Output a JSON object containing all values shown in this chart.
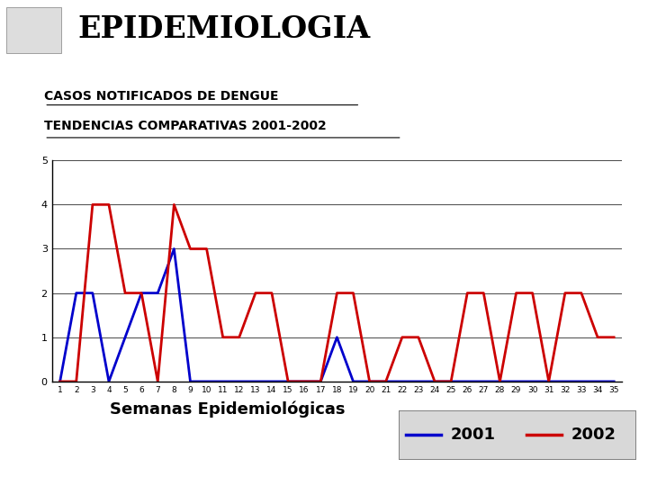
{
  "weeks": [
    1,
    2,
    3,
    4,
    5,
    6,
    7,
    8,
    9,
    10,
    11,
    12,
    13,
    14,
    15,
    16,
    17,
    18,
    19,
    20,
    21,
    22,
    23,
    24,
    25,
    26,
    27,
    28,
    29,
    30,
    31,
    32,
    33,
    34,
    35
  ],
  "y2001": [
    0,
    2,
    2,
    0,
    1,
    2,
    2,
    3,
    0,
    0,
    0,
    0,
    0,
    0,
    0,
    0,
    0,
    1,
    0,
    0,
    0,
    0,
    0,
    0,
    0,
    0,
    0,
    0,
    0,
    0,
    0,
    0,
    0,
    0,
    0
  ],
  "y2002": [
    0,
    0,
    4,
    4,
    2,
    2,
    0,
    4,
    3,
    3,
    1,
    1,
    2,
    2,
    0,
    0,
    0,
    2,
    2,
    0,
    0,
    1,
    1,
    0,
    0,
    2,
    2,
    0,
    2,
    2,
    0,
    2,
    2,
    1,
    1
  ],
  "color_2001": "#0000cc",
  "color_2002": "#cc0000",
  "title_line1": "CASOS NOTIFICADOS DE DENGUE",
  "title_line2": "TENDENCIAS COMPARATIVAS 2001-2002",
  "xlabel": "Semanas Epidemiológicas",
  "ylim": [
    0,
    5
  ],
  "xlim": [
    1,
    35
  ],
  "yticks": [
    0,
    1,
    2,
    3,
    4,
    5
  ],
  "xticks": [
    1,
    2,
    3,
    4,
    5,
    6,
    7,
    8,
    9,
    10,
    11,
    12,
    13,
    14,
    15,
    16,
    17,
    18,
    19,
    20,
    21,
    22,
    23,
    24,
    25,
    26,
    27,
    28,
    29,
    30,
    31,
    32,
    33,
    34,
    35
  ],
  "header_text": "EPIDEMIOLOGIA",
  "header_bar_color": "#1a1a6e",
  "bg_color": "#ffffff",
  "legend_box_color": "#d8d8d8",
  "legend_2001": "2001",
  "legend_2002": "2002",
  "line_width": 2.0
}
